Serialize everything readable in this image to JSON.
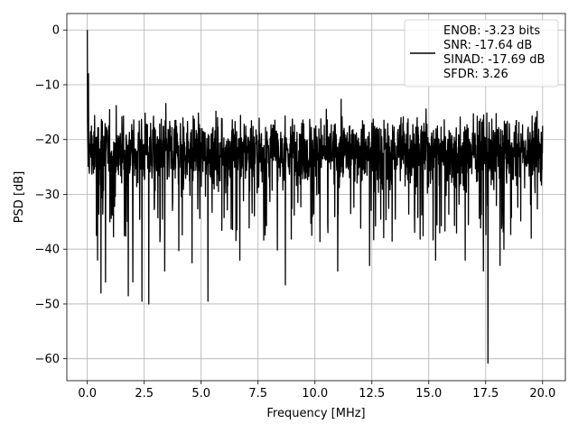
{
  "chart_data": {
    "type": "line",
    "title": "",
    "xlabel": "Frequency [MHz]",
    "ylabel": "PSD [dB]",
    "xlim": [
      -0.9,
      21.0
    ],
    "ylim": [
      -64,
      3
    ],
    "grid": true,
    "legend_position": "top-right",
    "x_ticks": [
      0.0,
      2.5,
      5.0,
      7.5,
      10.0,
      12.5,
      15.0,
      17.5,
      20.0
    ],
    "x_tick_labels": [
      "0.0",
      "2.5",
      "5.0",
      "7.5",
      "10.0",
      "12.5",
      "15.0",
      "17.5",
      "20.0"
    ],
    "y_ticks": [
      0,
      -10,
      -20,
      -30,
      -40,
      -50,
      -60
    ],
    "y_tick_labels": [
      "0",
      "−10",
      "−20",
      "−30",
      "−40",
      "−50",
      "−60"
    ],
    "series": [
      {
        "color": "#000000",
        "noise_floor_dB": -22,
        "peaks": [
          {
            "x": 0.0,
            "y": 0.0
          },
          {
            "x": 0.05,
            "y": -8.0
          },
          {
            "x": 0.4,
            "y": -37.5
          },
          {
            "x": 0.45,
            "y": -42.0
          },
          {
            "x": 0.6,
            "y": -48.0
          },
          {
            "x": 0.8,
            "y": -46.0
          },
          {
            "x": 1.8,
            "y": -48.5
          },
          {
            "x": 2.0,
            "y": -46.0
          },
          {
            "x": 2.4,
            "y": -49.5
          },
          {
            "x": 2.7,
            "y": -50.0
          },
          {
            "x": 3.4,
            "y": -44.0
          },
          {
            "x": 4.6,
            "y": -42.5
          },
          {
            "x": 5.3,
            "y": -49.5
          },
          {
            "x": 6.7,
            "y": -42.0
          },
          {
            "x": 8.7,
            "y": -46.5
          },
          {
            "x": 11.0,
            "y": -44.0
          },
          {
            "x": 12.4,
            "y": -43.0
          },
          {
            "x": 15.3,
            "y": -42.0
          },
          {
            "x": 16.6,
            "y": -42.0
          },
          {
            "x": 17.4,
            "y": -44.0
          },
          {
            "x": 17.6,
            "y": -60.8
          },
          {
            "x": 18.3,
            "y": -40.0
          },
          {
            "x": 19.5,
            "y": -38.0
          }
        ],
        "extent": [
          0.0,
          20.0
        ]
      }
    ],
    "legend_lines": [
      "ENOB: -3.23 bits",
      "SNR: -17.64 dB",
      "SINAD: -17.69 dB",
      "SFDR: 3.26"
    ]
  }
}
